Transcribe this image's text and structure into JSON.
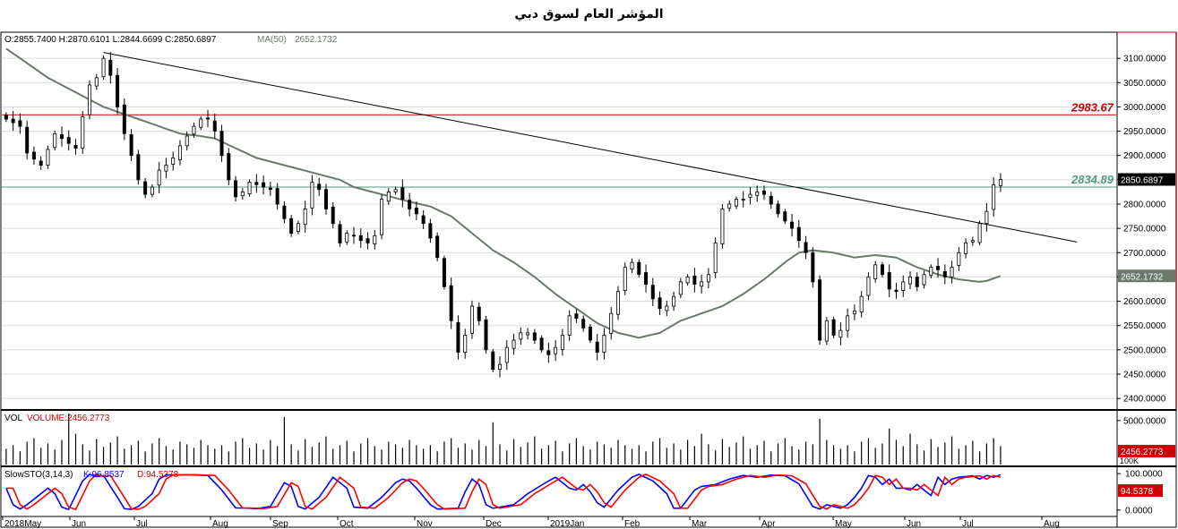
{
  "title": "المؤشر العام لسوق دبي",
  "chart_data": [
    {
      "type": "candlestick",
      "ohlc_label": "O:2855.7400 H:2870.6101 L:2844.6699 C:2850.6897",
      "ma_label": "MA(50)",
      "ma_value_label": "2652.1732",
      "last_price_label": "2850.6897",
      "ylim": [
        2380,
        3150
      ],
      "y_ticks": [
        2400,
        2450,
        2500,
        2550,
        2600,
        2650,
        2700,
        2750,
        2800,
        2850,
        2900,
        2950,
        3000,
        3050,
        3100
      ],
      "y_tick_labels": [
        "2400.0000",
        "2450.0000",
        "2500.0000",
        "2550.0000",
        "2600.0000",
        "2650.0000",
        "2700.0000",
        "2750.0000",
        "2800.0000",
        "2850.0000",
        "2900.0000",
        "2950.0000",
        "3000.0000",
        "3050.0000",
        "3100.0000"
      ],
      "x_month_labels": [
        "2018May",
        "Jun",
        "Jul",
        "Aug",
        "Sep",
        "Oct",
        "Nov",
        "Dec",
        "2019Jan",
        "Feb",
        "Mar",
        "Apr",
        "May",
        "Jun",
        "Jul",
        "Aug"
      ],
      "series_close_anchors": [
        [
          0,
          2975
        ],
        [
          2,
          2960
        ],
        [
          3,
          2905
        ],
        [
          5,
          2880
        ],
        [
          7,
          2945
        ],
        [
          9,
          2925
        ],
        [
          10,
          2915
        ],
        [
          11,
          2980
        ],
        [
          12,
          3045
        ],
        [
          13,
          3060
        ],
        [
          14,
          3100
        ],
        [
          15,
          3065
        ],
        [
          16,
          3000
        ],
        [
          17,
          2945
        ],
        [
          18,
          2900
        ],
        [
          19,
          2850
        ],
        [
          20,
          2820
        ],
        [
          21,
          2835
        ],
        [
          22,
          2870
        ],
        [
          23,
          2880
        ],
        [
          24,
          2895
        ],
        [
          25,
          2920
        ],
        [
          26,
          2940
        ],
        [
          27,
          2960
        ],
        [
          28,
          2975
        ],
        [
          29,
          2975
        ],
        [
          30,
          2950
        ],
        [
          31,
          2900
        ],
        [
          32,
          2850
        ],
        [
          33,
          2815
        ],
        [
          34,
          2825
        ],
        [
          35,
          2845
        ],
        [
          36,
          2840
        ],
        [
          37,
          2835
        ],
        [
          38,
          2830
        ],
        [
          39,
          2800
        ],
        [
          40,
          2770
        ],
        [
          41,
          2740
        ],
        [
          42,
          2760
        ],
        [
          43,
          2790
        ],
        [
          44,
          2845
        ],
        [
          45,
          2830
        ],
        [
          46,
          2790
        ],
        [
          47,
          2760
        ],
        [
          48,
          2720
        ],
        [
          49,
          2740
        ],
        [
          50,
          2735
        ],
        [
          51,
          2725
        ],
        [
          52,
          2720
        ],
        [
          53,
          2735
        ],
        [
          54,
          2810
        ],
        [
          55,
          2825
        ],
        [
          56,
          2830
        ],
        [
          57,
          2810
        ],
        [
          58,
          2790
        ],
        [
          59,
          2780
        ],
        [
          60,
          2760
        ],
        [
          61,
          2730
        ],
        [
          62,
          2690
        ],
        [
          63,
          2630
        ],
        [
          64,
          2560
        ],
        [
          65,
          2495
        ],
        [
          66,
          2530
        ],
        [
          67,
          2590
        ],
        [
          68,
          2560
        ],
        [
          69,
          2500
        ],
        [
          70,
          2460
        ],
        [
          71,
          2470
        ],
        [
          72,
          2505
        ],
        [
          73,
          2520
        ],
        [
          74,
          2535
        ],
        [
          75,
          2535
        ],
        [
          76,
          2520
        ],
        [
          77,
          2500
        ],
        [
          78,
          2490
        ],
        [
          79,
          2505
        ],
        [
          80,
          2530
        ],
        [
          81,
          2570
        ],
        [
          82,
          2565
        ],
        [
          83,
          2545
        ],
        [
          84,
          2520
        ],
        [
          85,
          2495
        ],
        [
          86,
          2530
        ],
        [
          87,
          2575
        ],
        [
          88,
          2620
        ],
        [
          89,
          2670
        ],
        [
          90,
          2680
        ],
        [
          91,
          2655
        ],
        [
          92,
          2635
        ],
        [
          93,
          2605
        ],
        [
          94,
          2585
        ],
        [
          95,
          2590
        ],
        [
          96,
          2610
        ],
        [
          97,
          2640
        ],
        [
          98,
          2650
        ],
        [
          99,
          2635
        ],
        [
          100,
          2640
        ],
        [
          101,
          2655
        ],
        [
          102,
          2720
        ],
        [
          103,
          2790
        ],
        [
          104,
          2800
        ],
        [
          105,
          2810
        ],
        [
          106,
          2810
        ],
        [
          107,
          2820
        ],
        [
          108,
          2825
        ],
        [
          109,
          2820
        ],
        [
          110,
          2800
        ],
        [
          111,
          2780
        ],
        [
          112,
          2765
        ],
        [
          113,
          2750
        ],
        [
          114,
          2725
        ],
        [
          115,
          2700
        ],
        [
          116,
          2640
        ],
        [
          117,
          2520
        ],
        [
          118,
          2560
        ],
        [
          119,
          2530
        ],
        [
          120,
          2540
        ],
        [
          121,
          2570
        ],
        [
          122,
          2580
        ],
        [
          123,
          2610
        ],
        [
          124,
          2650
        ],
        [
          125,
          2675
        ],
        [
          126,
          2655
        ],
        [
          127,
          2625
        ],
        [
          128,
          2620
        ],
        [
          129,
          2640
        ],
        [
          130,
          2650
        ],
        [
          131,
          2630
        ],
        [
          132,
          2655
        ],
        [
          133,
          2670
        ],
        [
          134,
          2665
        ],
        [
          135,
          2650
        ],
        [
          136,
          2670
        ],
        [
          137,
          2700
        ],
        [
          138,
          2720
        ],
        [
          139,
          2725
        ],
        [
          140,
          2760
        ],
        [
          141,
          2785
        ],
        [
          142,
          2840
        ],
        [
          143,
          2850.69
        ]
      ],
      "ma_anchors": [
        [
          0,
          3120
        ],
        [
          2,
          3100
        ],
        [
          6,
          3060
        ],
        [
          10,
          3030
        ],
        [
          14,
          3000
        ],
        [
          18,
          2980
        ],
        [
          22,
          2960
        ],
        [
          25,
          2945
        ],
        [
          28,
          2940
        ],
        [
          30,
          2935
        ],
        [
          33,
          2915
        ],
        [
          36,
          2895
        ],
        [
          40,
          2880
        ],
        [
          44,
          2865
        ],
        [
          48,
          2850
        ],
        [
          50,
          2835
        ],
        [
          54,
          2820
        ],
        [
          58,
          2805
        ],
        [
          61,
          2795
        ],
        [
          64,
          2775
        ],
        [
          67,
          2740
        ],
        [
          70,
          2705
        ],
        [
          73,
          2680
        ],
        [
          76,
          2650
        ],
        [
          79,
          2615
        ],
        [
          82,
          2585
        ],
        [
          85,
          2555
        ],
        [
          88,
          2535
        ],
        [
          91,
          2525
        ],
        [
          94,
          2535
        ],
        [
          97,
          2560
        ],
        [
          100,
          2575
        ],
        [
          103,
          2590
        ],
        [
          106,
          2615
        ],
        [
          109,
          2645
        ],
        [
          112,
          2680
        ],
        [
          114,
          2700
        ],
        [
          116,
          2705
        ],
        [
          119,
          2700
        ],
        [
          122,
          2690
        ],
        [
          125,
          2695
        ],
        [
          128,
          2690
        ],
        [
          131,
          2670
        ],
        [
          134,
          2655
        ],
        [
          137,
          2645
        ],
        [
          140,
          2640
        ],
        [
          141,
          2642
        ],
        [
          143,
          2652.17
        ]
      ],
      "trendline": [
        [
          14,
          3112
        ],
        [
          154,
          2722
        ]
      ],
      "horizontal_levels": [
        {
          "value": 2983.67,
          "label": "2983.67",
          "color": "#cc0000"
        },
        {
          "value": 2834.89,
          "label": "2834.89",
          "color": "#4f9b7d"
        }
      ],
      "colors": {
        "candle": "#000000",
        "ma": "#6a7a6a",
        "trend": "#000000"
      }
    },
    {
      "type": "bar",
      "panel_label": "VOL",
      "value_label": "VOLUME:2456.2773",
      "ylim": [
        0,
        6000
      ],
      "y_ticks": [
        5000
      ],
      "y_tick_labels": [
        "5000.0000"
      ],
      "bottom_label": "100K",
      "current_value_label": "2456.2773",
      "volume_pattern": [
        1800,
        2200,
        1500,
        2600,
        3000,
        1900,
        2400,
        1700,
        2800,
        2100,
        3500,
        2300,
        1600,
        2900,
        2000,
        2500,
        3200,
        1800,
        2200,
        2700,
        1500,
        2400,
        3000,
        2100,
        1700,
        2600,
        2300,
        1900,
        2800,
        2200
      ],
      "volume_peaks": {
        "9": 5800,
        "40": 5400,
        "70": 4800,
        "117": 5200,
        "127": 4100
      }
    },
    {
      "type": "line",
      "panel_label": "SlowSTO(3,14,3)",
      "k_label": "K:96.8537",
      "d_label": "D:94.5378",
      "ylim": [
        -15,
        115
      ],
      "y_ticks": [
        0,
        100
      ],
      "y_tick_labels": [
        "0.0000",
        "100.0000"
      ],
      "current_value_label": "94.5378",
      "k_anchors": [
        [
          0,
          60
        ],
        [
          1,
          15
        ],
        [
          2,
          3
        ],
        [
          3,
          15
        ],
        [
          6,
          60
        ],
        [
          7,
          45
        ],
        [
          8,
          8
        ],
        [
          9,
          2
        ],
        [
          11,
          80
        ],
        [
          12,
          98
        ],
        [
          13,
          92
        ],
        [
          14,
          95
        ],
        [
          16,
          35
        ],
        [
          17,
          4
        ],
        [
          18,
          2
        ],
        [
          19,
          10
        ],
        [
          21,
          45
        ],
        [
          22,
          85
        ],
        [
          23,
          96
        ],
        [
          26,
          97
        ],
        [
          29,
          95
        ],
        [
          31,
          55
        ],
        [
          33,
          6
        ],
        [
          35,
          5
        ],
        [
          36,
          4
        ],
        [
          38,
          10
        ],
        [
          40,
          75
        ],
        [
          41,
          65
        ],
        [
          42,
          10
        ],
        [
          43,
          3
        ],
        [
          45,
          35
        ],
        [
          47,
          90
        ],
        [
          49,
          60
        ],
        [
          50,
          8
        ],
        [
          52,
          5
        ],
        [
          54,
          35
        ],
        [
          56,
          75
        ],
        [
          57,
          85
        ],
        [
          58,
          80
        ],
        [
          59,
          60
        ],
        [
          61,
          15
        ],
        [
          62,
          3
        ],
        [
          65,
          5
        ],
        [
          66,
          50
        ],
        [
          67,
          85
        ],
        [
          68,
          70
        ],
        [
          69,
          15
        ],
        [
          70,
          5
        ],
        [
          73,
          15
        ],
        [
          75,
          45
        ],
        [
          78,
          80
        ],
        [
          79,
          90
        ],
        [
          81,
          60
        ],
        [
          82,
          55
        ],
        [
          83,
          70
        ],
        [
          84,
          50
        ],
        [
          85,
          20
        ],
        [
          86,
          8
        ],
        [
          88,
          55
        ],
        [
          90,
          90
        ],
        [
          91,
          98
        ],
        [
          93,
          80
        ],
        [
          95,
          45
        ],
        [
          96,
          5
        ],
        [
          97,
          5
        ],
        [
          99,
          55
        ],
        [
          100,
          65
        ],
        [
          102,
          70
        ],
        [
          104,
          85
        ],
        [
          106,
          95
        ],
        [
          108,
          90
        ],
        [
          110,
          96
        ],
        [
          112,
          94
        ],
        [
          114,
          72
        ],
        [
          116,
          10
        ],
        [
          117,
          3
        ],
        [
          118,
          15
        ],
        [
          120,
          5
        ],
        [
          121,
          15
        ],
        [
          122,
          35
        ],
        [
          123,
          60
        ],
        [
          124,
          95
        ],
        [
          125,
          90
        ],
        [
          126,
          70
        ],
        [
          127,
          85
        ],
        [
          128,
          60
        ],
        [
          129,
          60
        ],
        [
          130,
          55
        ],
        [
          131,
          70
        ],
        [
          132,
          55
        ],
        [
          133,
          40
        ],
        [
          134,
          90
        ],
        [
          135,
          70
        ],
        [
          136,
          85
        ],
        [
          137,
          90
        ],
        [
          139,
          94
        ],
        [
          140,
          85
        ],
        [
          141,
          95
        ],
        [
          142,
          90
        ],
        [
          143,
          96.85
        ]
      ],
      "d_offset_points": 1.0,
      "colors": {
        "k": "#0000ff",
        "d": "#ff0000"
      }
    }
  ]
}
